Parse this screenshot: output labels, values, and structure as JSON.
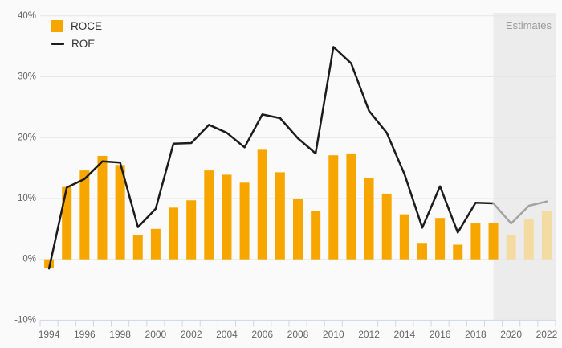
{
  "page": {
    "background": "#fafafa"
  },
  "legend": {
    "items": [
      {
        "label": "ROCE",
        "type": "bar"
      },
      {
        "label": "ROE",
        "type": "line"
      }
    ]
  },
  "estimates": {
    "label": "Estimates",
    "band_start_year": 2019,
    "estimate_from_year": 2020
  },
  "colors": {
    "bar": "#f7a600",
    "bar_estimate": "#f4dba2",
    "line": "#1c1c1c",
    "line_estimate": "#a3a3a3",
    "grid": "#e6e6e6",
    "axis": "#ccd6eb",
    "tick_label": "#666666",
    "band": "#ececec",
    "legend_text": "#333333",
    "estimates_text": "#9b9b9b"
  },
  "chart_data": {
    "type": "bar",
    "subtype": "bar-and-line-combo",
    "title": "",
    "xlabel": "",
    "ylabel": "",
    "ylim": [
      -10,
      40
    ],
    "grid": true,
    "legend_position": "top-left",
    "x_label_step": 2,
    "categories": [
      1994,
      1995,
      1996,
      1997,
      1998,
      1999,
      2000,
      2001,
      2002,
      2003,
      2004,
      2005,
      2006,
      2007,
      2008,
      2009,
      2010,
      2011,
      2012,
      2013,
      2014,
      2015,
      2016,
      2017,
      2018,
      2019,
      2020,
      2021,
      2022
    ],
    "y_ticks": [
      {
        "label": "40%",
        "value": 40
      },
      {
        "label": "30%",
        "value": 30
      },
      {
        "label": "20%",
        "value": 20
      },
      {
        "label": "10%",
        "value": 10
      },
      {
        "label": "0%",
        "value": 0
      },
      {
        "label": "-10%",
        "value": -10
      }
    ],
    "series": [
      {
        "name": "ROCE",
        "type": "bar",
        "unit": "%",
        "values": [
          -1.5,
          11.9,
          14.6,
          17.0,
          15.5,
          4.0,
          5.0,
          8.5,
          9.7,
          14.6,
          13.9,
          12.6,
          18.0,
          14.3,
          10.0,
          8.0,
          17.1,
          17.4,
          13.4,
          10.8,
          7.4,
          2.7,
          6.8,
          2.4,
          5.9,
          5.9,
          4.0,
          6.6,
          8.0
        ]
      },
      {
        "name": "ROE",
        "type": "line",
        "unit": "%",
        "values": [
          -1.5,
          11.8,
          13.2,
          16.1,
          15.9,
          5.3,
          8.3,
          19.0,
          19.1,
          22.1,
          20.8,
          18.4,
          23.8,
          23.2,
          19.9,
          17.4,
          34.9,
          32.2,
          24.4,
          20.8,
          14.0,
          5.2,
          12.0,
          4.4,
          9.3,
          9.2,
          5.9,
          8.8,
          9.5
        ]
      }
    ]
  }
}
